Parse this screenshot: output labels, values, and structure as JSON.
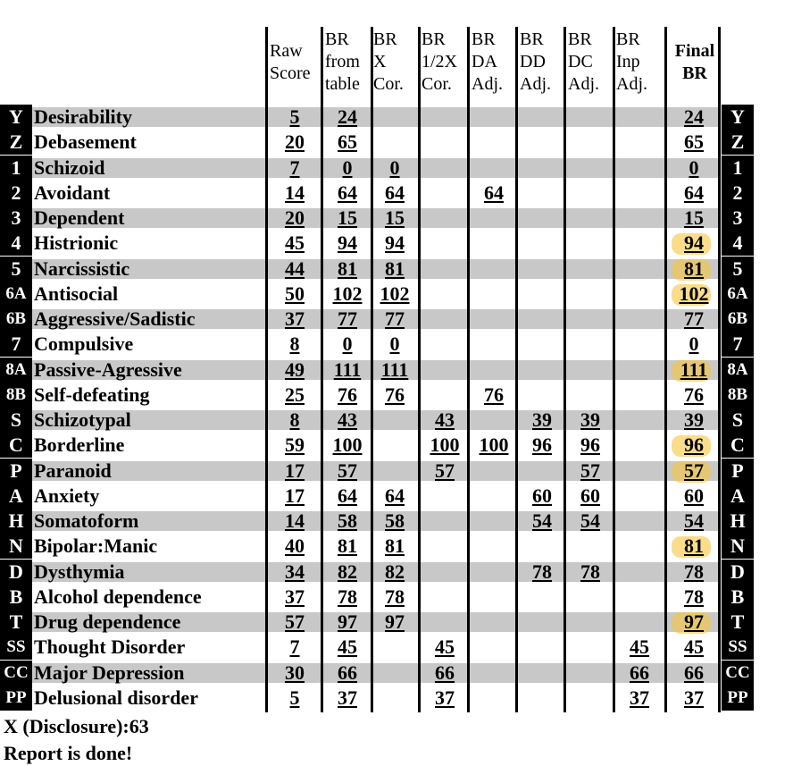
{
  "headers": [
    {
      "lines": [
        "Raw",
        "Score"
      ]
    },
    {
      "lines": [
        "BR",
        "from",
        "table"
      ]
    },
    {
      "lines": [
        "BR",
        "X",
        "Cor."
      ]
    },
    {
      "lines": [
        "BR",
        "1/2X",
        "Cor."
      ]
    },
    {
      "lines": [
        "BR",
        "DA",
        "Adj."
      ]
    },
    {
      "lines": [
        "BR",
        "DD",
        "Adj."
      ]
    },
    {
      "lines": [
        "BR",
        "DC",
        "Adj."
      ]
    },
    {
      "lines": [
        "BR",
        "Inp",
        "Adj."
      ]
    },
    {
      "lines": [
        "Final",
        "BR"
      ]
    }
  ],
  "rows": [
    {
      "code": "Y",
      "name": "Desirability",
      "raw": "5",
      "table": "24",
      "x": "",
      "half": "",
      "da": "",
      "dd": "",
      "dc": "",
      "inp": "",
      "final": "24",
      "highlight": false
    },
    {
      "code": "Z",
      "name": "Debasement",
      "raw": "20",
      "table": "65",
      "x": "",
      "half": "",
      "da": "",
      "dd": "",
      "dc": "",
      "inp": "",
      "final": "65",
      "highlight": false
    },
    {
      "code": "1",
      "name": "Schizoid",
      "raw": "7",
      "table": "0",
      "x": "0",
      "half": "",
      "da": "",
      "dd": "",
      "dc": "",
      "inp": "",
      "final": "0",
      "highlight": false
    },
    {
      "code": "2",
      "name": "Avoidant",
      "raw": "14",
      "table": "64",
      "x": "64",
      "half": "",
      "da": "64",
      "dd": "",
      "dc": "",
      "inp": "",
      "final": "64",
      "highlight": false
    },
    {
      "code": "3",
      "name": "Dependent",
      "raw": "20",
      "table": "15",
      "x": "15",
      "half": "",
      "da": "",
      "dd": "",
      "dc": "",
      "inp": "",
      "final": "15",
      "highlight": false
    },
    {
      "code": "4",
      "name": "Histrionic",
      "raw": "45",
      "table": "94",
      "x": "94",
      "half": "",
      "da": "",
      "dd": "",
      "dc": "",
      "inp": "",
      "final": "94",
      "highlight": true
    },
    {
      "code": "5",
      "name": "Narcissistic",
      "raw": "44",
      "table": "81",
      "x": "81",
      "half": "",
      "da": "",
      "dd": "",
      "dc": "",
      "inp": "",
      "final": "81",
      "highlight": true
    },
    {
      "code": "6A",
      "name": "Antisocial",
      "raw": "50",
      "table": "102",
      "x": "102",
      "half": "",
      "da": "",
      "dd": "",
      "dc": "",
      "inp": "",
      "final": "102",
      "highlight": true
    },
    {
      "code": "6B",
      "name": "Aggressive/Sadistic",
      "raw": "37",
      "table": "77",
      "x": "77",
      "half": "",
      "da": "",
      "dd": "",
      "dc": "",
      "inp": "",
      "final": "77",
      "highlight": false
    },
    {
      "code": "7",
      "name": "Compulsive",
      "raw": "8",
      "table": "0",
      "x": "0",
      "half": "",
      "da": "",
      "dd": "",
      "dc": "",
      "inp": "",
      "final": "0",
      "highlight": false
    },
    {
      "code": "8A",
      "name": "Passive-Agressive",
      "raw": "49",
      "table": "111",
      "x": "111",
      "half": "",
      "da": "",
      "dd": "",
      "dc": "",
      "inp": "",
      "final": "111",
      "highlight": true
    },
    {
      "code": "8B",
      "name": "Self-defeating",
      "raw": "25",
      "table": "76",
      "x": "76",
      "half": "",
      "da": "76",
      "dd": "",
      "dc": "",
      "inp": "",
      "final": "76",
      "highlight": false
    },
    {
      "code": "S",
      "name": "Schizotypal",
      "raw": "8",
      "table": "43",
      "x": "",
      "half": "43",
      "da": "",
      "dd": "39",
      "dc": "39",
      "inp": "",
      "final": "39",
      "highlight": false
    },
    {
      "code": "C",
      "name": "Borderline",
      "raw": "59",
      "table": "100",
      "x": "",
      "half": "100",
      "da": "100",
      "dd": "96",
      "dc": "96",
      "inp": "",
      "final": "96",
      "highlight": true
    },
    {
      "code": "P",
      "name": "Paranoid",
      "raw": "17",
      "table": "57",
      "x": "",
      "half": "57",
      "da": "",
      "dd": "",
      "dc": "57",
      "inp": "",
      "final": "57",
      "highlight": true
    },
    {
      "code": "A",
      "name": "Anxiety",
      "raw": "17",
      "table": "64",
      "x": "64",
      "half": "",
      "da": "",
      "dd": "60",
      "dc": "60",
      "inp": "",
      "final": "60",
      "highlight": false
    },
    {
      "code": "H",
      "name": "Somatoform",
      "raw": "14",
      "table": "58",
      "x": "58",
      "half": "",
      "da": "",
      "dd": "54",
      "dc": "54",
      "inp": "",
      "final": "54",
      "highlight": false
    },
    {
      "code": "N",
      "name": "Bipolar:Manic",
      "raw": "40",
      "table": "81",
      "x": "81",
      "half": "",
      "da": "",
      "dd": "",
      "dc": "",
      "inp": "",
      "final": "81",
      "highlight": true
    },
    {
      "code": "D",
      "name": "Dysthymia",
      "raw": "34",
      "table": "82",
      "x": "82",
      "half": "",
      "da": "",
      "dd": "78",
      "dc": "78",
      "inp": "",
      "final": "78",
      "highlight": false
    },
    {
      "code": "B",
      "name": "Alcohol dependence",
      "raw": "37",
      "table": "78",
      "x": "78",
      "half": "",
      "da": "",
      "dd": "",
      "dc": "",
      "inp": "",
      "final": "78",
      "highlight": false
    },
    {
      "code": "T",
      "name": "Drug dependence",
      "raw": "57",
      "table": "97",
      "x": "97",
      "half": "",
      "da": "",
      "dd": "",
      "dc": "",
      "inp": "",
      "final": "97",
      "highlight": true
    },
    {
      "code": "SS",
      "name": "Thought Disorder",
      "raw": "7",
      "table": "45",
      "x": "",
      "half": "45",
      "da": "",
      "dd": "",
      "dc": "",
      "inp": "45",
      "final": "45",
      "highlight": false
    },
    {
      "code": "CC",
      "name": "Major Depression",
      "raw": "30",
      "table": "66",
      "x": "",
      "half": "66",
      "da": "",
      "dd": "",
      "dc": "",
      "inp": "66",
      "final": "66",
      "highlight": false
    },
    {
      "code": "PP",
      "name": "Delusional disorder",
      "raw": "5",
      "table": "37",
      "x": "",
      "half": "37",
      "da": "",
      "dd": "",
      "dc": "",
      "inp": "37",
      "final": "37",
      "highlight": false
    }
  ],
  "footer": {
    "disclosure": "X (Disclosure):63",
    "status": "Report is done!"
  },
  "colors": {
    "band": "#c8c8c8",
    "highlight": "#f6c43c"
  }
}
